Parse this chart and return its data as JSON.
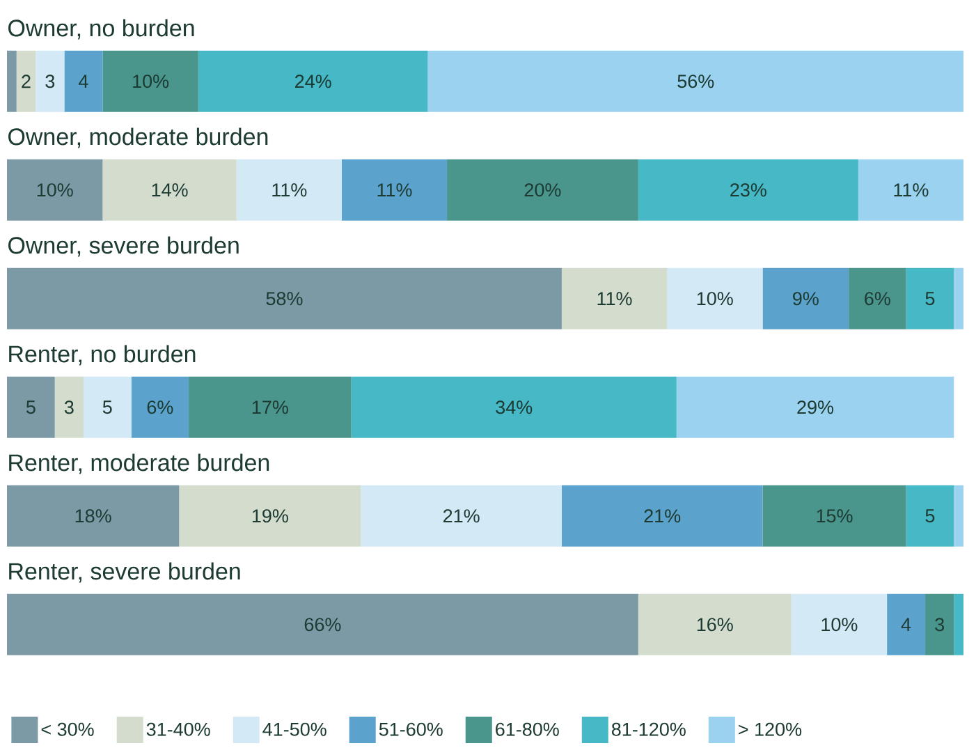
{
  "chart_data": {
    "type": "bar",
    "orientation": "horizontal",
    "stacked": true,
    "legend": "bottom",
    "categories": [
      "Owner, no burden",
      "Owner, moderate burden",
      "Owner, severe burden",
      "Renter, no burden",
      "Renter, moderate burden",
      "Renter, severe burden"
    ],
    "series": [
      {
        "name": "< 30%",
        "color": "#7c9aa6",
        "values": [
          1,
          10,
          58,
          5,
          18,
          66
        ],
        "value_labels": [
          null,
          "10%",
          "58%",
          "5",
          "18%",
          "66%"
        ]
      },
      {
        "name": "31-40%",
        "color": "#d3dccd",
        "values": [
          2,
          14,
          11,
          3,
          19,
          16
        ],
        "value_labels": [
          "2",
          "14%",
          "11%",
          "3",
          "19%",
          "16%"
        ]
      },
      {
        "name": "41-50%",
        "color": "#d3e9f6",
        "values": [
          3,
          11,
          10,
          5,
          21,
          10
        ],
        "value_labels": [
          "3",
          "11%",
          "10%",
          "5",
          "21%",
          "10%"
        ]
      },
      {
        "name": "51-60%",
        "color": "#5ba3cc",
        "values": [
          4,
          11,
          9,
          6,
          21,
          4
        ],
        "value_labels": [
          "4",
          "11%",
          "9%",
          "6%",
          "21%",
          "4"
        ]
      },
      {
        "name": "61-80%",
        "color": "#4a958c",
        "values": [
          10,
          20,
          6,
          17,
          15,
          3
        ],
        "value_labels": [
          "10%",
          "20%",
          "6%",
          "17%",
          "15%",
          "3"
        ]
      },
      {
        "name": "81-120%",
        "color": "#47b8c6",
        "values": [
          24,
          23,
          5,
          34,
          5,
          1
        ],
        "value_labels": [
          "24%",
          "23%",
          "5",
          "34%",
          "5",
          null
        ]
      },
      {
        "name": "> 120%",
        "color": "#9bd2f0",
        "values": [
          56,
          11,
          1,
          29,
          1,
          0
        ],
        "value_labels": [
          "56%",
          "11%",
          null,
          "29%",
          null,
          null
        ]
      }
    ]
  }
}
